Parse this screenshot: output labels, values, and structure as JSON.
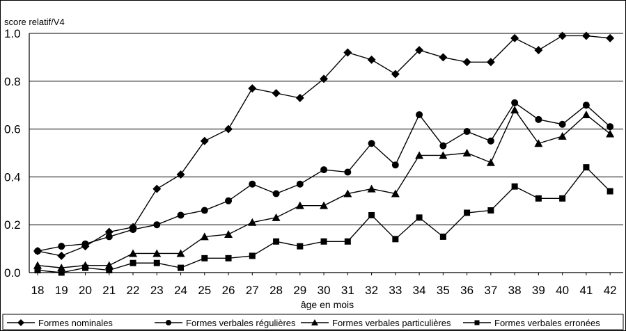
{
  "chart_data": {
    "type": "line",
    "ylabel": "score relatif/V4",
    "xlabel": "âge en mois",
    "ylim": [
      0,
      1.0
    ],
    "yticks": [
      "0.0",
      "0.2",
      "0.4",
      "0.6",
      "0.8",
      "1.0"
    ],
    "grid": "horizontal",
    "legend_position": "bottom",
    "x": [
      18,
      19,
      20,
      21,
      22,
      23,
      24,
      25,
      26,
      27,
      28,
      29,
      30,
      31,
      32,
      33,
      34,
      35,
      36,
      37,
      38,
      39,
      40,
      41,
      42
    ],
    "series": [
      {
        "name": "Formes nominales",
        "marker": "diamond",
        "values": [
          0.09,
          0.07,
          0.11,
          0.17,
          0.19,
          0.35,
          0.41,
          0.55,
          0.6,
          0.77,
          0.75,
          0.73,
          0.81,
          0.92,
          0.89,
          0.83,
          0.93,
          0.9,
          0.88,
          0.88,
          0.98,
          0.93,
          0.99,
          0.99,
          0.98
        ]
      },
      {
        "name": "Formes verbales régulières",
        "marker": "circle",
        "values": [
          0.09,
          0.11,
          0.12,
          0.15,
          0.18,
          0.2,
          0.24,
          0.26,
          0.3,
          0.37,
          0.33,
          0.37,
          0.43,
          0.42,
          0.54,
          0.45,
          0.66,
          0.53,
          0.59,
          0.55,
          0.71,
          0.64,
          0.62,
          0.7,
          0.61
        ]
      },
      {
        "name": "Formes verbales particulières",
        "marker": "triangle",
        "values": [
          0.03,
          0.02,
          0.03,
          0.03,
          0.08,
          0.08,
          0.08,
          0.15,
          0.16,
          0.21,
          0.23,
          0.28,
          0.28,
          0.33,
          0.35,
          0.33,
          0.49,
          0.49,
          0.5,
          0.46,
          0.68,
          0.54,
          0.57,
          0.66,
          0.58
        ]
      },
      {
        "name": "Formes verbales erronées",
        "marker": "square",
        "values": [
          0.01,
          0.0,
          0.02,
          0.01,
          0.04,
          0.04,
          0.02,
          0.06,
          0.06,
          0.07,
          0.13,
          0.11,
          0.13,
          0.13,
          0.24,
          0.14,
          0.23,
          0.15,
          0.25,
          0.26,
          0.36,
          0.31,
          0.31,
          0.44,
          0.34
        ]
      }
    ]
  }
}
